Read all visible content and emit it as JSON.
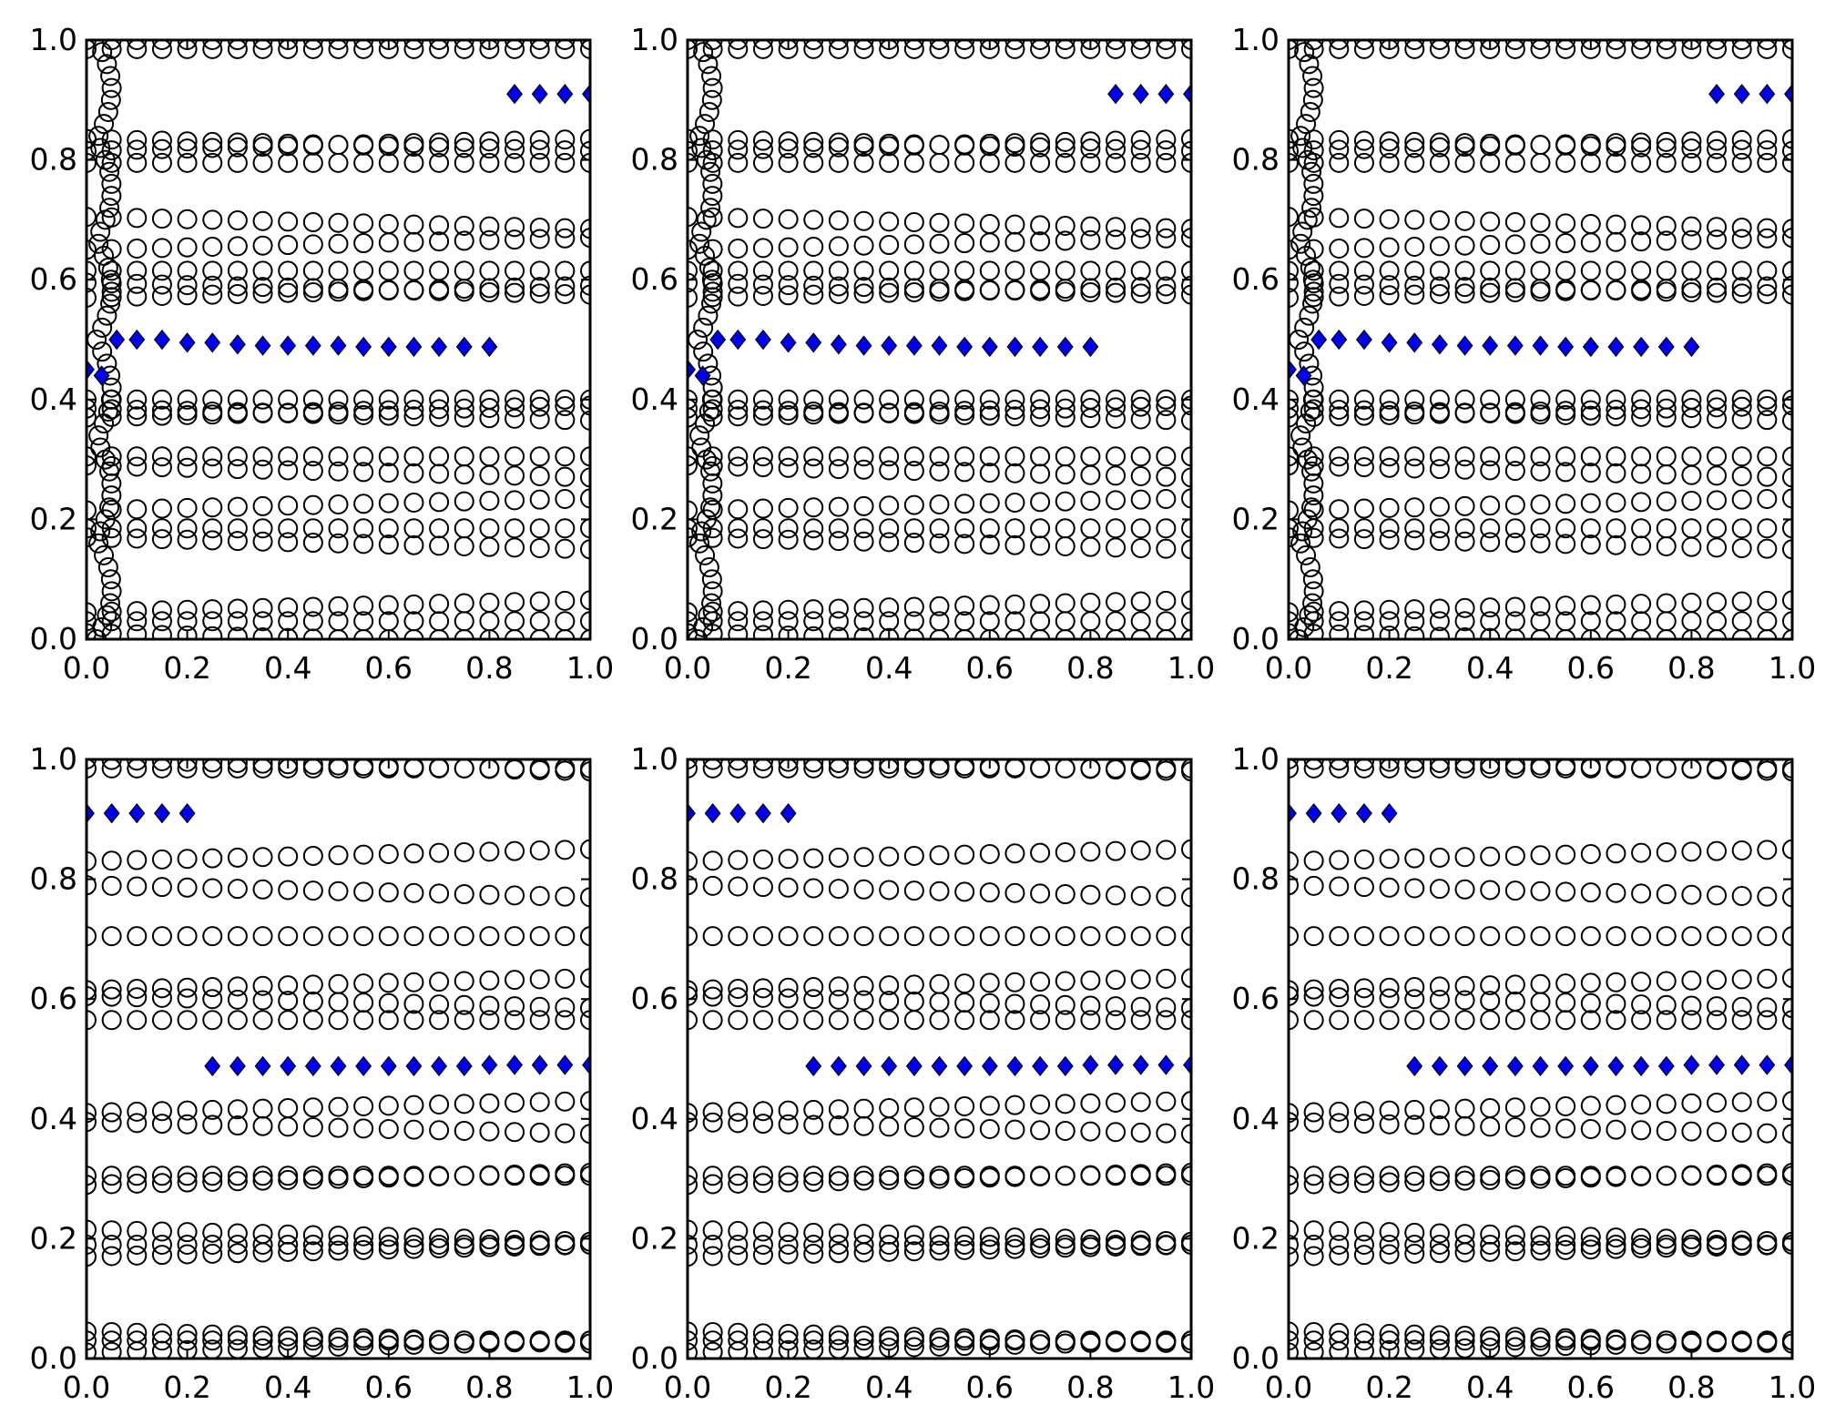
{
  "figure": {
    "layout": "2x3 grid of scatter panels",
    "colors": {
      "circle_edge": "#000000",
      "diamond_fill": "#0000ee",
      "diamond_edge": "#000033",
      "axes": "#000000"
    }
  },
  "chart_data": [
    {
      "type": "scatter",
      "panel": "top-left",
      "xlim": [
        0,
        1
      ],
      "ylim": [
        0,
        1
      ],
      "grid": false,
      "xticks": [
        "0.0",
        "0.2",
        "0.4",
        "0.6",
        "0.8",
        "1.0"
      ],
      "yticks": [
        "0.0",
        "0.2",
        "0.4",
        "0.6",
        "0.8",
        "1.0"
      ],
      "series": [
        {
          "marker": "open-circle",
          "pattern": "top"
        },
        {
          "marker": "diamond",
          "color": "#0000ee",
          "x": [
            0.0,
            0.03,
            0.06,
            0.1,
            0.15,
            0.2,
            0.25,
            0.3,
            0.35,
            0.4,
            0.45,
            0.5,
            0.55,
            0.6,
            0.65,
            0.7,
            0.75,
            0.8,
            0.85,
            0.9,
            0.95,
            1.0
          ],
          "y": [
            0.45,
            0.44,
            0.5,
            0.5,
            0.5,
            0.495,
            0.495,
            0.492,
            0.49,
            0.49,
            0.49,
            0.49,
            0.488,
            0.488,
            0.488,
            0.488,
            0.488,
            0.488,
            0.91,
            0.91,
            0.91,
            0.91
          ]
        }
      ]
    },
    {
      "type": "scatter",
      "panel": "top-middle",
      "xlim": [
        0,
        1
      ],
      "ylim": [
        0,
        1
      ],
      "grid": false,
      "xticks": [
        "0.0",
        "0.2",
        "0.4",
        "0.6",
        "0.8",
        "1.0"
      ],
      "yticks": [
        "0.0",
        "0.2",
        "0.4",
        "0.6",
        "0.8",
        "1.0"
      ],
      "series": [
        {
          "marker": "open-circle",
          "pattern": "top"
        },
        {
          "marker": "diamond",
          "color": "#0000ee",
          "x": [
            0.0,
            0.03,
            0.06,
            0.1,
            0.15,
            0.2,
            0.25,
            0.3,
            0.35,
            0.4,
            0.45,
            0.5,
            0.55,
            0.6,
            0.65,
            0.7,
            0.75,
            0.8,
            0.85,
            0.9,
            0.95,
            1.0
          ],
          "y": [
            0.45,
            0.44,
            0.5,
            0.5,
            0.5,
            0.495,
            0.495,
            0.492,
            0.49,
            0.49,
            0.49,
            0.49,
            0.488,
            0.488,
            0.488,
            0.488,
            0.488,
            0.488,
            0.91,
            0.91,
            0.91,
            0.91
          ]
        }
      ]
    },
    {
      "type": "scatter",
      "panel": "top-right",
      "xlim": [
        0,
        1
      ],
      "ylim": [
        0,
        1
      ],
      "grid": false,
      "xticks": [
        "0.0",
        "0.2",
        "0.4",
        "0.6",
        "0.8",
        "1.0"
      ],
      "yticks": [
        "0.0",
        "0.2",
        "0.4",
        "0.6",
        "0.8",
        "1.0"
      ],
      "series": [
        {
          "marker": "open-circle",
          "pattern": "top"
        },
        {
          "marker": "diamond",
          "color": "#0000ee",
          "x": [
            0.0,
            0.03,
            0.06,
            0.1,
            0.15,
            0.2,
            0.25,
            0.3,
            0.35,
            0.4,
            0.45,
            0.5,
            0.55,
            0.6,
            0.65,
            0.7,
            0.75,
            0.8,
            0.85,
            0.9,
            0.95,
            1.0
          ],
          "y": [
            0.45,
            0.44,
            0.5,
            0.5,
            0.5,
            0.495,
            0.495,
            0.492,
            0.49,
            0.49,
            0.49,
            0.49,
            0.488,
            0.488,
            0.488,
            0.488,
            0.488,
            0.488,
            0.91,
            0.91,
            0.91,
            0.91
          ]
        }
      ]
    },
    {
      "type": "scatter",
      "panel": "bottom-left",
      "xlim": [
        0,
        1
      ],
      "ylim": [
        0,
        1
      ],
      "grid": false,
      "xticks": [
        "0.0",
        "0.2",
        "0.4",
        "0.6",
        "0.8",
        "1.0"
      ],
      "yticks": [
        "0.0",
        "0.2",
        "0.4",
        "0.6",
        "0.8",
        "1.0"
      ],
      "series": [
        {
          "marker": "open-circle",
          "pattern": "bottom"
        },
        {
          "marker": "diamond",
          "color": "#0000ee",
          "x": [
            0.0,
            0.05,
            0.1,
            0.15,
            0.2,
            0.25,
            0.3,
            0.35,
            0.4,
            0.45,
            0.5,
            0.55,
            0.6,
            0.65,
            0.7,
            0.75,
            0.8,
            0.85,
            0.9,
            0.95,
            1.0
          ],
          "y": [
            0.91,
            0.91,
            0.91,
            0.91,
            0.91,
            0.488,
            0.488,
            0.488,
            0.488,
            0.488,
            0.488,
            0.488,
            0.488,
            0.488,
            0.488,
            0.488,
            0.49,
            0.49,
            0.49,
            0.49,
            0.49
          ]
        }
      ]
    },
    {
      "type": "scatter",
      "panel": "bottom-middle",
      "xlim": [
        0,
        1
      ],
      "ylim": [
        0,
        1
      ],
      "grid": false,
      "xticks": [
        "0.0",
        "0.2",
        "0.4",
        "0.6",
        "0.8",
        "1.0"
      ],
      "yticks": [
        "0.0",
        "0.2",
        "0.4",
        "0.6",
        "0.8",
        "1.0"
      ],
      "series": [
        {
          "marker": "open-circle",
          "pattern": "bottom"
        },
        {
          "marker": "diamond",
          "color": "#0000ee",
          "x": [
            0.0,
            0.05,
            0.1,
            0.15,
            0.2,
            0.25,
            0.3,
            0.35,
            0.4,
            0.45,
            0.5,
            0.55,
            0.6,
            0.65,
            0.7,
            0.75,
            0.8,
            0.85,
            0.9,
            0.95,
            1.0
          ],
          "y": [
            0.91,
            0.91,
            0.91,
            0.91,
            0.91,
            0.488,
            0.488,
            0.488,
            0.488,
            0.488,
            0.488,
            0.488,
            0.488,
            0.488,
            0.488,
            0.488,
            0.49,
            0.49,
            0.49,
            0.49,
            0.49
          ]
        }
      ]
    },
    {
      "type": "scatter",
      "panel": "bottom-right",
      "xlim": [
        0,
        1
      ],
      "ylim": [
        0,
        1
      ],
      "grid": false,
      "xticks": [
        "0.0",
        "0.2",
        "0.4",
        "0.6",
        "0.8",
        "1.0"
      ],
      "yticks": [
        "0.0",
        "0.2",
        "0.4",
        "0.6",
        "0.8",
        "1.0"
      ],
      "series": [
        {
          "marker": "open-circle",
          "pattern": "bottom"
        },
        {
          "marker": "diamond",
          "color": "#0000ee",
          "x": [
            0.0,
            0.05,
            0.1,
            0.15,
            0.2,
            0.25,
            0.3,
            0.35,
            0.4,
            0.45,
            0.5,
            0.55,
            0.6,
            0.65,
            0.7,
            0.75,
            0.8,
            0.85,
            0.9,
            0.95,
            1.0
          ],
          "y": [
            0.91,
            0.91,
            0.91,
            0.91,
            0.91,
            0.488,
            0.488,
            0.488,
            0.488,
            0.488,
            0.488,
            0.488,
            0.488,
            0.488,
            0.488,
            0.488,
            0.49,
            0.49,
            0.49,
            0.49,
            0.49
          ]
        }
      ]
    }
  ]
}
